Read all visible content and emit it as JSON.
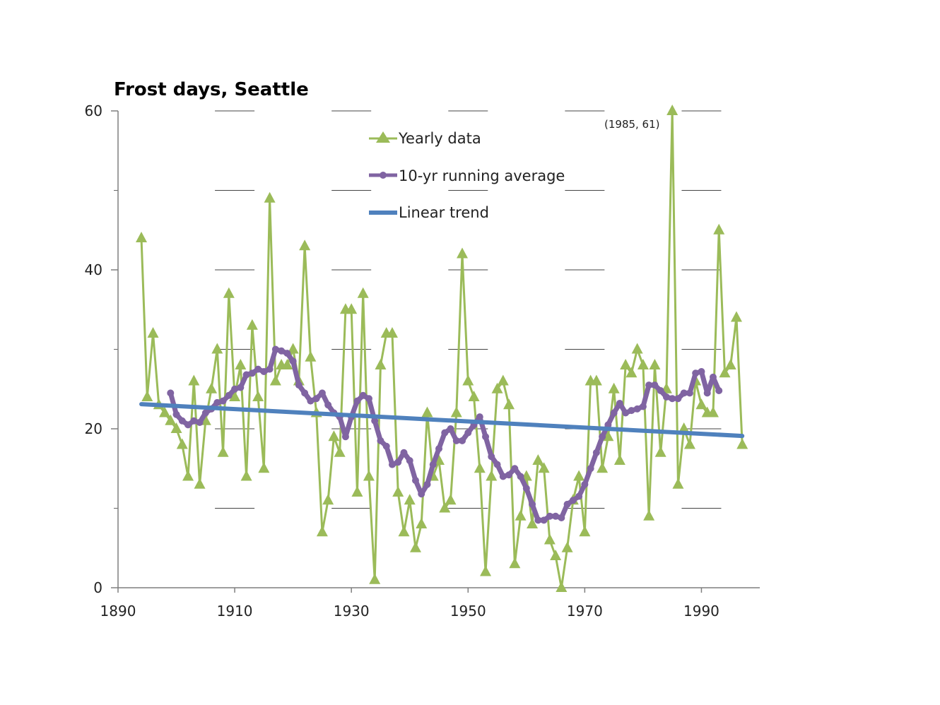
{
  "chart_data": {
    "type": "line",
    "title": "Frost days, Seattle",
    "xlabel": "",
    "ylabel": "",
    "xlim": [
      1890,
      2000
    ],
    "ylim": [
      0,
      60
    ],
    "x_ticks": [
      "1890",
      "1910",
      "1930",
      "1950",
      "1970",
      "1990"
    ],
    "y_ticks": [
      "0",
      "20",
      "40",
      "60"
    ],
    "grid": "horizontal dashes at y ticks",
    "legend": {
      "position": "top-center",
      "entries": [
        "Yearly data",
        "10-yr running average",
        "Linear trend"
      ]
    },
    "annotation": "(1985, 61)",
    "colors": {
      "yearly": "#9BBB59",
      "running": "#8064A2",
      "trend": "#4F81BD"
    },
    "series": [
      {
        "name": "Yearly data",
        "marker": "triangle",
        "x": [
          1894,
          1895,
          1896,
          1897,
          1898,
          1899,
          1900,
          1901,
          1902,
          1903,
          1904,
          1905,
          1906,
          1907,
          1908,
          1909,
          1910,
          1911,
          1912,
          1913,
          1914,
          1915,
          1916,
          1917,
          1918,
          1919,
          1920,
          1921,
          1922,
          1923,
          1924,
          1925,
          1926,
          1927,
          1928,
          1929,
          1930,
          1931,
          1932,
          1933,
          1934,
          1935,
          1936,
          1937,
          1938,
          1939,
          1940,
          1941,
          1942,
          1943,
          1944,
          1945,
          1946,
          1947,
          1948,
          1949,
          1950,
          1951,
          1952,
          1953,
          1954,
          1955,
          1956,
          1957,
          1958,
          1959,
          1960,
          1961,
          1962,
          1963,
          1964,
          1965,
          1966,
          1967,
          1968,
          1969,
          1970,
          1971,
          1972,
          1973,
          1974,
          1975,
          1976,
          1977,
          1978,
          1979,
          1980,
          1981,
          1982,
          1983,
          1984,
          1985,
          1986,
          1987,
          1988,
          1989,
          1990,
          1991,
          1992,
          1993,
          1994,
          1995,
          1996,
          1997
        ],
        "y": [
          44,
          24,
          32,
          23,
          22,
          21,
          20,
          18,
          14,
          26,
          13,
          21,
          25,
          30,
          17,
          37,
          24,
          28,
          14,
          33,
          24,
          15,
          49,
          26,
          28,
          28,
          30,
          26,
          43,
          29,
          22,
          7,
          11,
          19,
          17,
          35,
          35,
          12,
          37,
          14,
          1,
          28,
          32,
          32,
          12,
          7,
          11,
          5,
          8,
          22,
          14,
          16,
          10,
          11,
          22,
          42,
          26,
          24,
          15,
          2,
          14,
          25,
          26,
          23,
          3,
          9,
          14,
          8,
          16,
          15,
          6,
          4,
          0,
          5,
          11,
          14,
          7,
          26,
          26,
          15,
          19,
          25,
          16,
          28,
          27,
          30,
          28,
          9,
          28,
          17,
          25,
          61,
          13,
          20,
          18,
          26,
          23,
          22,
          22,
          45,
          27,
          28,
          34,
          18
        ]
      },
      {
        "name": "10-yr running average",
        "marker": "circle",
        "x": [
          1899,
          1900,
          1901,
          1902,
          1903,
          1904,
          1905,
          1906,
          1907,
          1908,
          1909,
          1910,
          1911,
          1912,
          1913,
          1914,
          1915,
          1916,
          1917,
          1918,
          1919,
          1920,
          1921,
          1922,
          1923,
          1924,
          1925,
          1926,
          1927,
          1928,
          1929,
          1930,
          1931,
          1932,
          1933,
          1934,
          1935,
          1936,
          1937,
          1938,
          1939,
          1940,
          1941,
          1942,
          1943,
          1944,
          1945,
          1946,
          1947,
          1948,
          1949,
          1950,
          1951,
          1952,
          1953,
          1954,
          1955,
          1956,
          1957,
          1958,
          1959,
          1960,
          1961,
          1962,
          1963,
          1964,
          1965,
          1966,
          1967,
          1968,
          1969,
          1970,
          1971,
          1972,
          1973,
          1974,
          1975,
          1976,
          1977,
          1978,
          1979,
          1980,
          1981,
          1982,
          1983,
          1984,
          1985,
          1986,
          1987,
          1988,
          1989,
          1990,
          1991,
          1992,
          1993
        ],
        "y": [
          24.5,
          21.8,
          21.0,
          20.5,
          21.0,
          20.8,
          22.0,
          22.5,
          23.3,
          23.5,
          24.2,
          25.0,
          25.2,
          26.8,
          27.0,
          27.5,
          27.2,
          27.5,
          30.0,
          29.8,
          29.5,
          28.5,
          25.5,
          24.5,
          23.5,
          23.8,
          24.5,
          23.0,
          22.0,
          21.5,
          19.0,
          21.5,
          23.5,
          24.2,
          23.8,
          21.0,
          18.5,
          17.8,
          15.5,
          15.8,
          17.0,
          16.0,
          13.5,
          11.8,
          13.0,
          15.5,
          17.5,
          19.5,
          20.0,
          18.5,
          18.5,
          19.5,
          20.5,
          21.5,
          19.0,
          16.5,
          15.5,
          14.0,
          14.2,
          15.0,
          14.0,
          12.5,
          10.5,
          8.5,
          8.5,
          9.0,
          9.0,
          8.8,
          10.5,
          11.0,
          11.5,
          13.0,
          15.0,
          17.0,
          19.0,
          20.5,
          22.0,
          23.2,
          22.0,
          22.3,
          22.5,
          22.8,
          25.5,
          25.5,
          24.8,
          24.0,
          23.8,
          23.8,
          24.5,
          24.5,
          27.0,
          27.2,
          24.5,
          26.5,
          24.8
        ]
      },
      {
        "name": "Linear trend",
        "marker": "none",
        "x": [
          1894,
          1997
        ],
        "y": [
          23.1,
          19.1
        ]
      }
    ]
  }
}
